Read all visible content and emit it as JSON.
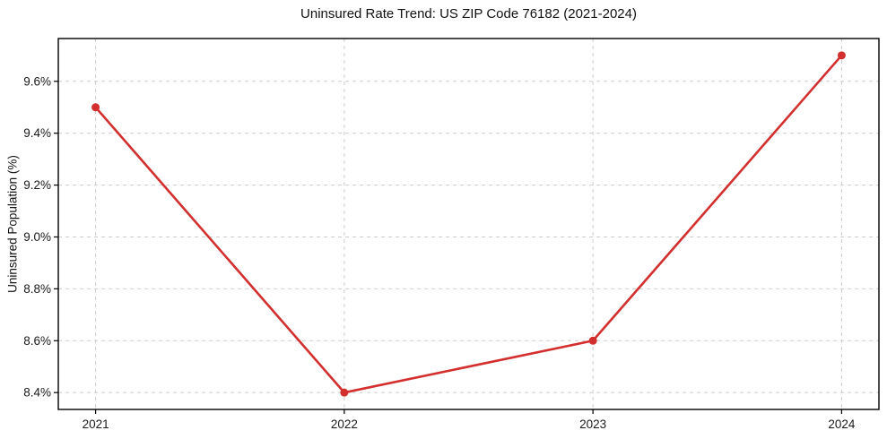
{
  "chart_data": {
    "type": "line",
    "title": "Uninsured Rate Trend: US ZIP Code 76182 (2021-2024)",
    "xlabel": "",
    "ylabel": "Uninsured Population (%)",
    "x": [
      2021,
      2022,
      2023,
      2024
    ],
    "xtick_labels": [
      "2021",
      "2022",
      "2023",
      "2024"
    ],
    "series": [
      {
        "name": "Uninsured Population (%)",
        "values": [
          9.5,
          8.4,
          8.6,
          9.7
        ]
      }
    ],
    "xlim": [
      2020.85,
      2024.15
    ],
    "ylim": [
      8.335,
      9.765
    ],
    "yticks": [
      8.4,
      8.6,
      8.8,
      9.0,
      9.2,
      9.4,
      9.6
    ],
    "ytick_labels": [
      "8.4%",
      "8.6%",
      "8.8%",
      "9.0%",
      "9.2%",
      "9.4%",
      "9.6%"
    ],
    "grid": true,
    "grid_style": "dashed",
    "legend_position": "none",
    "colors": {
      "line": "#d32f2f",
      "marker": "#d32f2f",
      "grid": "#cccccc",
      "spine": "#000000",
      "background": "#ffffff"
    }
  }
}
